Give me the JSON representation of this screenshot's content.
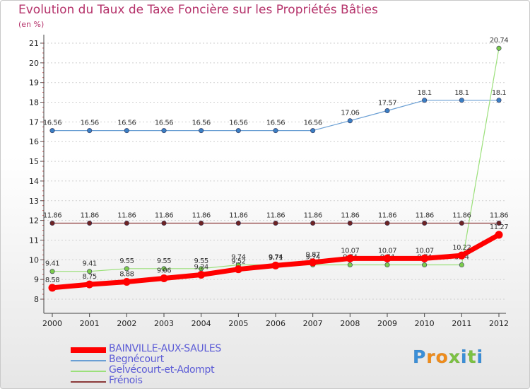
{
  "chart_data": {
    "type": "line",
    "title": "Evolution du Taux de Taxe Foncière sur les Propriétés Bâties",
    "subtitle": "(en %)",
    "xlabel": "",
    "ylabel": "",
    "x": [
      "2000",
      "2001",
      "2002",
      "2003",
      "2004",
      "2005",
      "2006",
      "2007",
      "2008",
      "2009",
      "2010",
      "2011",
      "2012"
    ],
    "yticks": [
      "8",
      "9",
      "10",
      "11",
      "12",
      "13",
      "14",
      "15",
      "16",
      "17",
      "18",
      "19",
      "20",
      "21"
    ],
    "ylim": [
      8,
      21
    ],
    "grid": "horizontal-dashed",
    "legend_position": "bottom-left",
    "series": [
      {
        "name": "Begnécourt",
        "color": "#6a9fd4",
        "marker": "#3b7fc4",
        "width": 1.2,
        "values": [
          16.56,
          16.56,
          16.56,
          16.56,
          16.56,
          16.56,
          16.56,
          16.56,
          17.06,
          17.57,
          18.1,
          18.1,
          18.1
        ],
        "labels": [
          "16.56",
          "16.56",
          "16.56",
          "16.56",
          "16.56",
          "16.56",
          "16.56",
          "16.56",
          "17.06",
          "17.57",
          "18.1",
          "18.1",
          "18.1"
        ]
      },
      {
        "name": "Gelvécourt-et-Adompt",
        "color": "#9be07a",
        "marker": "#7ccc4c",
        "width": 1.2,
        "values": [
          9.41,
          9.41,
          9.55,
          9.55,
          9.55,
          9.74,
          9.74,
          9.74,
          9.74,
          9.74,
          9.74,
          9.74,
          20.74
        ],
        "labels": [
          "9.41",
          "9.41",
          "9.55",
          "9.55",
          "9.55",
          "9.74",
          "9.74",
          "9.74",
          "9.74",
          "9.74",
          "9.74",
          "9.74",
          "20.74"
        ]
      },
      {
        "name": "Frénois",
        "color": "#8b3a3a",
        "marker": "#6e2323",
        "width": 1.2,
        "values": [
          11.86,
          11.86,
          11.86,
          11.86,
          11.86,
          11.86,
          11.86,
          11.86,
          11.86,
          11.86,
          11.86,
          11.86,
          11.86
        ],
        "labels": [
          "11.86",
          "11.86",
          "11.86",
          "11.86",
          "11.86",
          "11.86",
          "11.86",
          "11.86",
          "11.86",
          "11.86",
          "11.86",
          "11.86",
          "11.86"
        ]
      },
      {
        "name": "BAINVILLE-AUX-SAULES",
        "color": "#ff0000",
        "marker": "#ff0000",
        "width": 7,
        "values": [
          8.58,
          8.75,
          8.88,
          9.06,
          9.24,
          9.52,
          9.71,
          9.87,
          10.07,
          10.07,
          10.07,
          10.22,
          11.27
        ],
        "labels": [
          "8.58",
          "8.75",
          "8.88",
          "9.06",
          "9.24",
          "9.52",
          "9.71",
          "9.87",
          "10.07",
          "10.07",
          "10.07",
          "10.22",
          "11.27"
        ]
      }
    ],
    "legend_order": [
      "BAINVILLE-AUX-SAULES",
      "Begnécourt",
      "Gelvécourt-et-Adompt",
      "Frénois"
    ]
  },
  "logo": {
    "letters": [
      "P",
      "r",
      "o",
      "x",
      "i",
      "t",
      "i"
    ],
    "colors": [
      "#3a8fd9",
      "#f08c1a",
      "#f08c1a",
      "#7cc242",
      "#3a8fd9",
      "#7cc242",
      "#3a8fd9"
    ]
  }
}
